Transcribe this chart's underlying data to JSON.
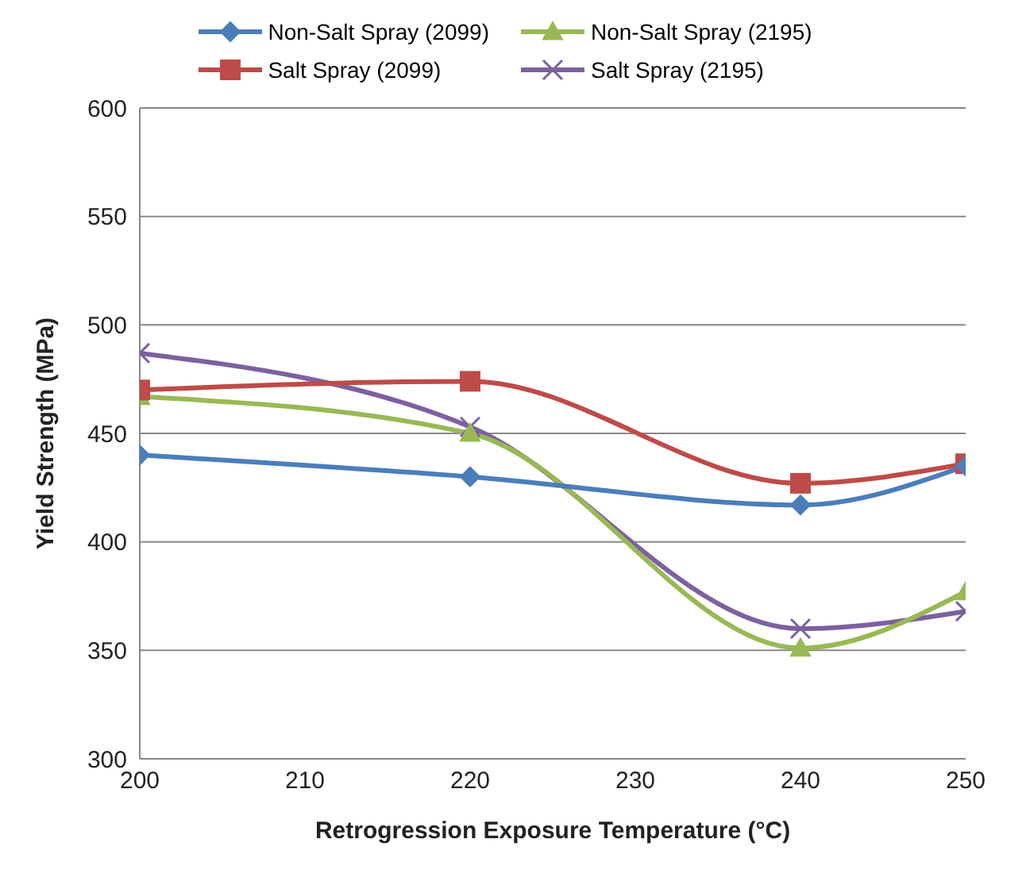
{
  "chart_data": {
    "type": "line",
    "xlabel": "Retrogression Exposure Temperature (°C)",
    "ylabel": "Yield Strength (MPa)",
    "x": [
      200,
      220,
      240,
      250
    ],
    "series": [
      {
        "name": "Non-Salt Spray (2099)",
        "color": "#4a7ebb",
        "marker": "diamond",
        "values": [
          440,
          430,
          417,
          435
        ]
      },
      {
        "name": "Salt Spray (2099)",
        "color": "#be4b48",
        "marker": "square",
        "values": [
          470,
          474,
          427,
          436
        ]
      },
      {
        "name": "Non-Salt Spray (2195)",
        "color": "#98b954",
        "marker": "triangle",
        "values": [
          467,
          450,
          351,
          377
        ]
      },
      {
        "name": "Salt Spray (2195)",
        "color": "#7d60a0",
        "marker": "cross",
        "values": [
          487,
          453,
          360,
          368
        ]
      }
    ],
    "xlim": [
      200,
      250
    ],
    "xticks": [
      200,
      210,
      220,
      230,
      240,
      250
    ],
    "ylim": [
      300,
      600
    ],
    "yticks": [
      300,
      350,
      400,
      450,
      500,
      550,
      600
    ],
    "grid": "y",
    "legend": "top",
    "line_style": "solid"
  }
}
